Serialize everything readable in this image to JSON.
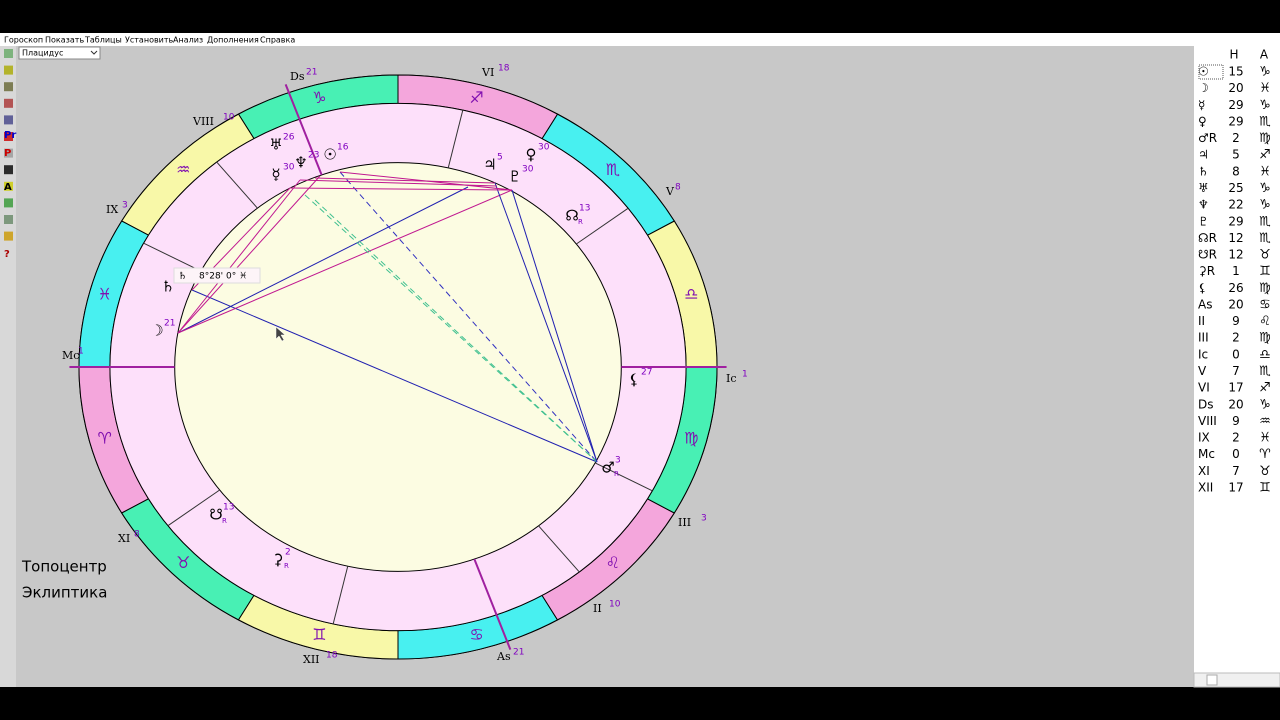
{
  "menu": [
    "Гороскоп",
    "Показать",
    "Таблицы",
    "Установить",
    "Анализ",
    "Дополнения",
    "Справка"
  ],
  "house_system": "Плацидус",
  "toolbar": [
    "Pr",
    "P",
    "A",
    "?"
  ],
  "wheel": {
    "signs": [
      "♈",
      "♉",
      "♊",
      "♋",
      "♌",
      "♍",
      "♎",
      "♏",
      "♐",
      "♑",
      "♒",
      "♓"
    ],
    "houses": [
      {
        "label": "Ds",
        "deg": 21
      },
      {
        "label": "VI",
        "deg": 18
      },
      {
        "label": "V",
        "deg": 8
      },
      {
        "label": "Ic",
        "deg": 1
      },
      {
        "label": "III",
        "deg": 3
      },
      {
        "label": "II",
        "deg": 10
      },
      {
        "label": "As",
        "deg": 21
      },
      {
        "label": "XII",
        "deg": 18
      },
      {
        "label": "XI",
        "deg": 8
      },
      {
        "label": "Mc",
        "deg": 1
      },
      {
        "label": "IX",
        "deg": 3
      },
      {
        "label": "VIII",
        "deg": 10
      }
    ],
    "planets": [
      {
        "glyph": "☉",
        "deg": 16
      },
      {
        "glyph": "☿",
        "deg": 30
      },
      {
        "glyph": "♆",
        "deg": 23
      },
      {
        "glyph": "♅",
        "deg": 26
      },
      {
        "glyph": "♃",
        "deg": 5
      },
      {
        "glyph": "♀",
        "deg": 30
      },
      {
        "glyph": "♇",
        "deg": 30
      },
      {
        "glyph": "☊",
        "deg": 13,
        "retro": "R"
      },
      {
        "glyph": "♄"
      },
      {
        "glyph": "☽",
        "deg": 21
      },
      {
        "glyph": "⚸",
        "deg": 27
      },
      {
        "glyph": "♂",
        "deg": 3,
        "retro": "R"
      },
      {
        "glyph": "☋",
        "deg": 13,
        "retro": "R"
      },
      {
        "glyph": "⚳",
        "deg": 2,
        "retro": "R"
      }
    ],
    "tooltip": {
      "glyph": "♄",
      "text": "8°28' 0° ♓"
    }
  },
  "notes": [
    "Топоцентр",
    "Эклиптика"
  ],
  "table": {
    "header": [
      "H",
      "A"
    ],
    "rows": [
      [
        "☉",
        15,
        "♑"
      ],
      [
        "☽",
        20,
        "♓"
      ],
      [
        "☿",
        29,
        "♑"
      ],
      [
        "♀",
        29,
        "♏"
      ],
      [
        "♂R",
        2,
        "♍"
      ],
      [
        "♃",
        5,
        "♐"
      ],
      [
        "♄",
        8,
        "♓"
      ],
      [
        "♅",
        25,
        "♑"
      ],
      [
        "♆",
        22,
        "♑"
      ],
      [
        "♇",
        29,
        "♏"
      ],
      [
        "☊R",
        12,
        "♏"
      ],
      [
        "☋R",
        12,
        "♉"
      ],
      [
        "⚳R",
        1,
        "♊"
      ],
      [
        "⚸",
        26,
        "♍"
      ],
      [
        "As",
        20,
        "♋"
      ],
      [
        "II",
        9,
        "♌"
      ],
      [
        "III",
        2,
        "♍"
      ],
      [
        "Ic",
        0,
        "♎"
      ],
      [
        "V",
        7,
        "♏"
      ],
      [
        "VI",
        17,
        "♐"
      ],
      [
        "Ds",
        20,
        "♑"
      ],
      [
        "VIII",
        9,
        "♒"
      ],
      [
        "IX",
        2,
        "♓"
      ],
      [
        "Mc",
        0,
        "♈"
      ],
      [
        "XI",
        7,
        "♉"
      ],
      [
        "XII",
        17,
        "♊"
      ]
    ]
  }
}
